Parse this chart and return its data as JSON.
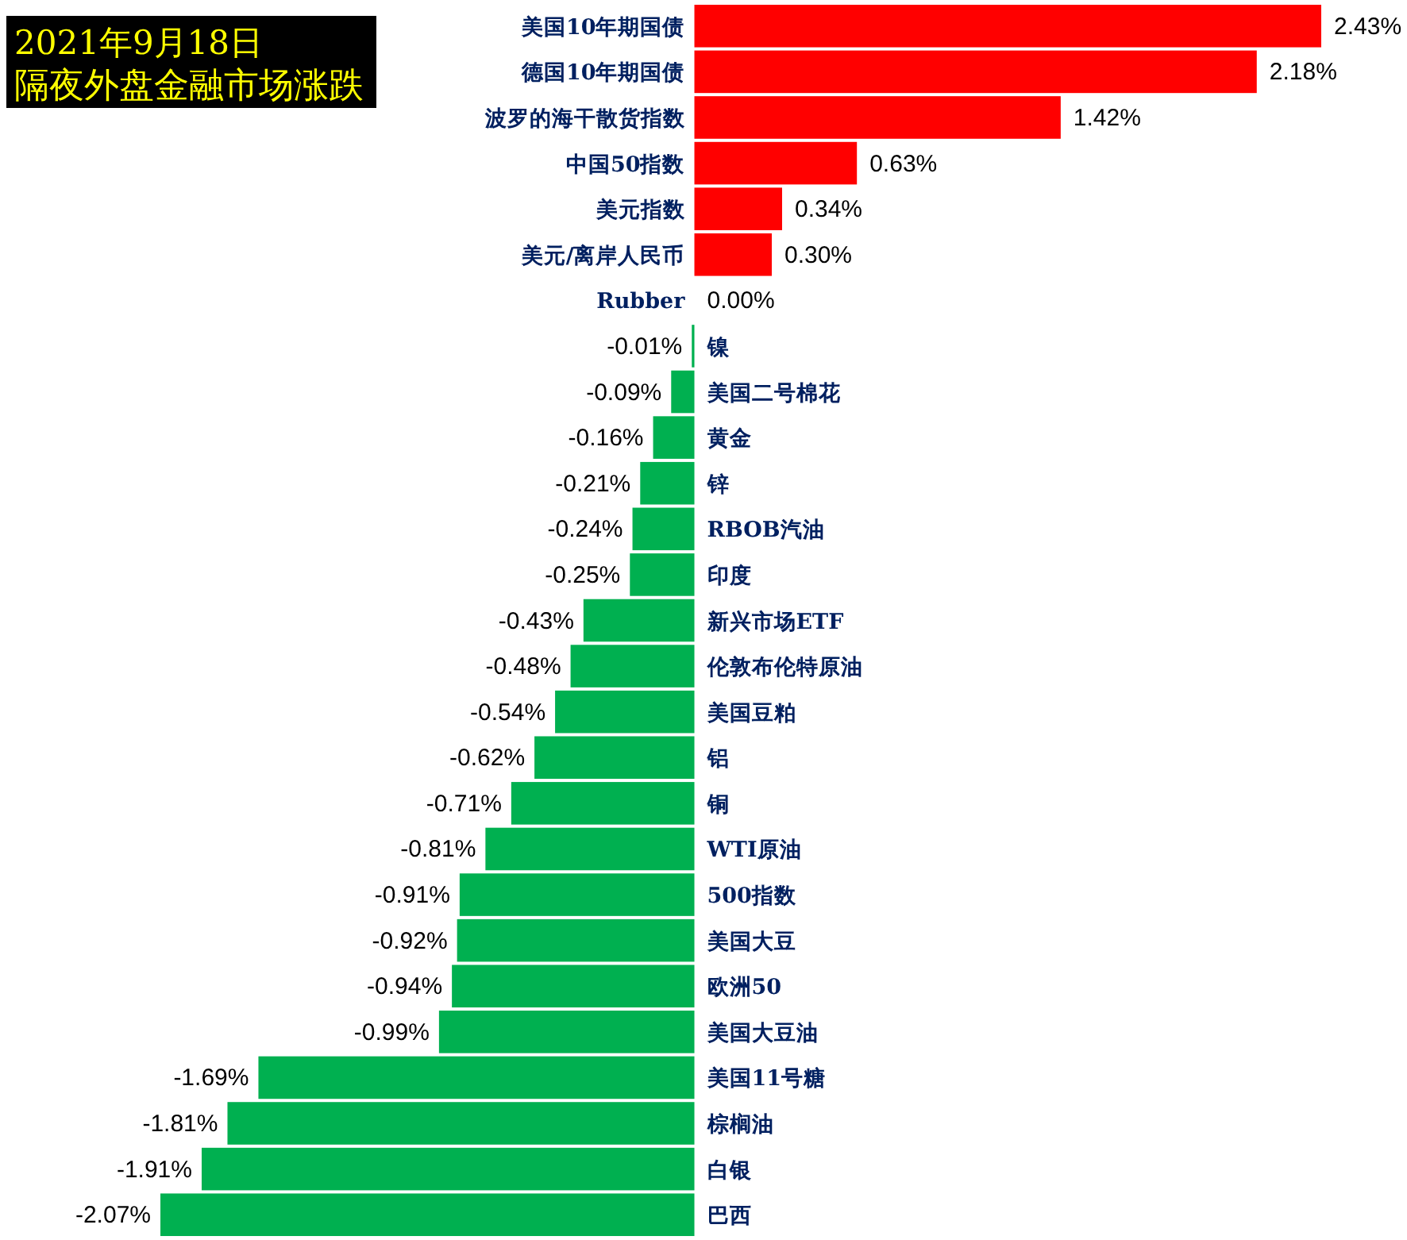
{
  "chart_data": {
    "type": "bar",
    "orientation": "horizontal",
    "title": "2021年9月18日",
    "subtitle": "隔夜外盘金融市场涨跌",
    "categories": [
      "美国10年期国债",
      "德国10年期国债",
      "波罗的海干散货指数",
      "中国50指数",
      "美元指数",
      "美元/离岸人民币",
      "Rubber",
      "镍",
      "美国二号棉花",
      "黄金",
      "锌",
      "RBOB汽油",
      "印度",
      "新兴市场ETF",
      "伦敦布伦特原油",
      "美国豆粕",
      "铝",
      "铜",
      "WTI原油",
      "500指数",
      "美国大豆",
      "欧洲50",
      "美国大豆油",
      "美国11号糖",
      "棕榈油",
      "白银",
      "巴西"
    ],
    "values": [
      2.43,
      2.18,
      1.42,
      0.63,
      0.34,
      0.3,
      0.0,
      -0.01,
      -0.09,
      -0.16,
      -0.21,
      -0.24,
      -0.25,
      -0.43,
      -0.48,
      -0.54,
      -0.62,
      -0.71,
      -0.81,
      -0.91,
      -0.92,
      -0.94,
      -0.99,
      -1.69,
      -1.81,
      -1.91,
      -2.07
    ],
    "colors": [
      "#ff0000",
      "#ff0000",
      "#ff0000",
      "#ff0000",
      "#ff0000",
      "#ff0000",
      "#ff0000",
      "#00b050",
      "#00b050",
      "#00b050",
      "#00b050",
      "#00b050",
      "#00b050",
      "#00b050",
      "#00b050",
      "#00b050",
      "#00b050",
      "#00b050",
      "#00b050",
      "#00b050",
      "#00b050",
      "#00b050",
      "#00b050",
      "#00b050",
      "#00b050",
      "#00b050",
      "#00b050"
    ],
    "value_labels": [
      "2.43%",
      "2.18%",
      "1.42%",
      "0.63%",
      "0.34%",
      "0.30%",
      "0.00%",
      "-0.01%",
      "-0.09%",
      "-0.16%",
      "-0.21%",
      "-0.24%",
      "-0.25%",
      "-0.43%",
      "-0.48%",
      "-0.54%",
      "-0.62%",
      "-0.71%",
      "-0.81%",
      "-0.91%",
      "-0.92%",
      "-0.94%",
      "-0.99%",
      "-1.69%",
      "-1.81%",
      "-1.91%",
      "-2.07%"
    ]
  }
}
